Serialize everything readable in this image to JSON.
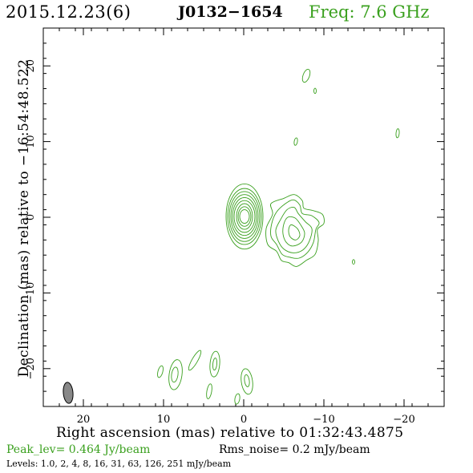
{
  "header": {
    "date": "2015.12.23(6)",
    "source": "J0132−1654",
    "freq": "Freq: 7.6 GHz",
    "freq_color": "#3aa01e"
  },
  "axes": {
    "xlabel": "Right ascension (mas) relative to 01:32:43.4875",
    "ylabel": "Declination (mas) relative to −16:54:48.522"
  },
  "footer": {
    "peak": "Peak_lev=  0.464 Jy/beam",
    "rms": "Rms_noise=  0.2 mJy/beam",
    "levels": "Levels: 1.0,   2,   4,   8,  16,  31,  63, 126, 251 mJy/beam"
  },
  "chart_data": {
    "type": "contour",
    "title": "",
    "xlabel": "Right ascension (mas) relative to 01:32:43.4875",
    "ylabel": "Declination (mas) relative to −16:54:48.522",
    "xlim": [
      25,
      -25
    ],
    "ylim": [
      -25,
      25
    ],
    "x_reversed": true,
    "xticks": [
      20,
      10,
      0,
      -10,
      -20
    ],
    "yticks": [
      20,
      10,
      0,
      -10,
      -20
    ],
    "xtick_labels": [
      "20",
      "10",
      "0",
      "−10",
      "−20"
    ],
    "ytick_labels": [
      "20",
      "10",
      "0",
      "−10",
      "−20"
    ],
    "grid": false,
    "contour_color": "#3aa01e",
    "contour_levels_mJy_per_beam": [
      1.0,
      2,
      4,
      8,
      16,
      31,
      63,
      126,
      251
    ],
    "peak_Jy_per_beam": 0.464,
    "rms_noise_mJy_per_beam": 0.2,
    "beam": {
      "x": 21.9,
      "y": -23.2,
      "major_mas": 2.8,
      "minor_mas": 1.2,
      "pa_deg": -5,
      "fill": "#888888"
    },
    "core": {
      "x": -0.1,
      "y": 0.1,
      "contours": [
        {
          "rx": 0.6,
          "ry": 0.9
        },
        {
          "rx": 0.8,
          "ry": 1.3
        },
        {
          "rx": 1.0,
          "ry": 1.7
        },
        {
          "rx": 1.3,
          "ry": 2.1
        },
        {
          "rx": 1.5,
          "ry": 2.5
        },
        {
          "rx": 1.7,
          "ry": 2.9
        },
        {
          "rx": 1.9,
          "ry": 3.3
        },
        {
          "rx": 2.1,
          "ry": 3.7
        },
        {
          "rx": 2.3,
          "ry": 4.3
        }
      ]
    },
    "jet_contours": [
      [
        [
          -5.0,
          2.5
        ],
        [
          -6.3,
          3.0
        ],
        [
          -7.3,
          2.2
        ],
        [
          -7.5,
          1.2
        ],
        [
          -8.6,
          0.9
        ],
        [
          -9.8,
          0.4
        ],
        [
          -10.0,
          -0.8
        ],
        [
          -9.2,
          -1.6
        ],
        [
          -9.3,
          -3.1
        ],
        [
          -8.9,
          -4.9
        ],
        [
          -7.8,
          -5.7
        ],
        [
          -6.6,
          -6.5
        ],
        [
          -5.6,
          -6.0
        ],
        [
          -4.7,
          -5.7
        ],
        [
          -4.1,
          -4.5
        ],
        [
          -3.0,
          -3.6
        ],
        [
          -2.8,
          -1.5
        ],
        [
          -3.6,
          0.4
        ],
        [
          -3.4,
          1.8
        ]
      ],
      [
        [
          -5.2,
          1.8
        ],
        [
          -6.2,
          2.3
        ],
        [
          -7.0,
          1.6
        ],
        [
          -7.3,
          0.5
        ],
        [
          -8.5,
          0.2
        ],
        [
          -9.4,
          -0.7
        ],
        [
          -9.0,
          -1.6
        ],
        [
          -8.7,
          -3.3
        ],
        [
          -8.0,
          -4.6
        ],
        [
          -6.9,
          -5.4
        ],
        [
          -5.8,
          -5.3
        ],
        [
          -4.8,
          -4.9
        ],
        [
          -4.1,
          -3.6
        ],
        [
          -3.4,
          -2.5
        ],
        [
          -3.5,
          -0.8
        ],
        [
          -4.1,
          0.7
        ]
      ],
      [
        [
          -5.4,
          1.0
        ],
        [
          -6.3,
          1.3
        ],
        [
          -6.8,
          0.5
        ],
        [
          -7.7,
          -0.6
        ],
        [
          -8.5,
          -1.5
        ],
        [
          -8.2,
          -3.1
        ],
        [
          -7.4,
          -4.3
        ],
        [
          -6.2,
          -4.7
        ],
        [
          -5.0,
          -4.2
        ],
        [
          -4.3,
          -3.1
        ],
        [
          -4.0,
          -1.7
        ],
        [
          -4.6,
          -0.3
        ]
      ],
      [
        [
          -5.5,
          0.0
        ],
        [
          -6.4,
          -0.1
        ],
        [
          -7.1,
          -1.0
        ],
        [
          -7.6,
          -2.1
        ],
        [
          -7.2,
          -3.3
        ],
        [
          -6.1,
          -3.8
        ],
        [
          -5.3,
          -3.3
        ],
        [
          -4.9,
          -2.2
        ],
        [
          -5.0,
          -0.9
        ]
      ],
      [
        [
          -5.9,
          -1.0
        ],
        [
          -6.7,
          -1.5
        ],
        [
          -7.0,
          -2.4
        ],
        [
          -6.5,
          -3.0
        ],
        [
          -5.8,
          -2.6
        ],
        [
          -5.6,
          -1.7
        ]
      ]
    ],
    "small_blobs": [
      {
        "x": -7.8,
        "y": 18.7,
        "rx": 0.4,
        "ry": 0.9,
        "rot": 20
      },
      {
        "x": -8.9,
        "y": 16.7,
        "rx": 0.15,
        "ry": 0.35,
        "rot": 0
      },
      {
        "x": -6.5,
        "y": 10.0,
        "rx": 0.2,
        "ry": 0.5,
        "rot": 10
      },
      {
        "x": -19.2,
        "y": 11.1,
        "rx": 0.2,
        "ry": 0.6,
        "rot": 5
      },
      {
        "x": -13.7,
        "y": -5.9,
        "rx": 0.15,
        "ry": 0.3,
        "rot": 0
      },
      {
        "x": 10.4,
        "y": -20.4,
        "rx": 0.3,
        "ry": 0.8,
        "rot": 15
      },
      {
        "x": 8.5,
        "y": -20.8,
        "rx": 0.8,
        "ry": 2.0,
        "rot": 8
      },
      {
        "x": 8.6,
        "y": -20.8,
        "rx": 0.4,
        "ry": 1.0,
        "rot": 8
      },
      {
        "x": 6.1,
        "y": -18.9,
        "rx": 0.35,
        "ry": 1.5,
        "rot": 30
      },
      {
        "x": 3.6,
        "y": -19.4,
        "rx": 0.6,
        "ry": 1.7,
        "rot": 5
      },
      {
        "x": 3.6,
        "y": -19.4,
        "rx": 0.25,
        "ry": 0.8,
        "rot": 5
      },
      {
        "x": 4.3,
        "y": -23.0,
        "rx": 0.3,
        "ry": 1.0,
        "rot": 10
      },
      {
        "x": -0.4,
        "y": -21.7,
        "rx": 0.7,
        "ry": 1.7,
        "rot": -8
      },
      {
        "x": -0.4,
        "y": -21.6,
        "rx": 0.3,
        "ry": 0.8,
        "rot": -8
      },
      {
        "x": 0.8,
        "y": -24.0,
        "rx": 0.3,
        "ry": 0.7,
        "rot": 10
      }
    ]
  }
}
